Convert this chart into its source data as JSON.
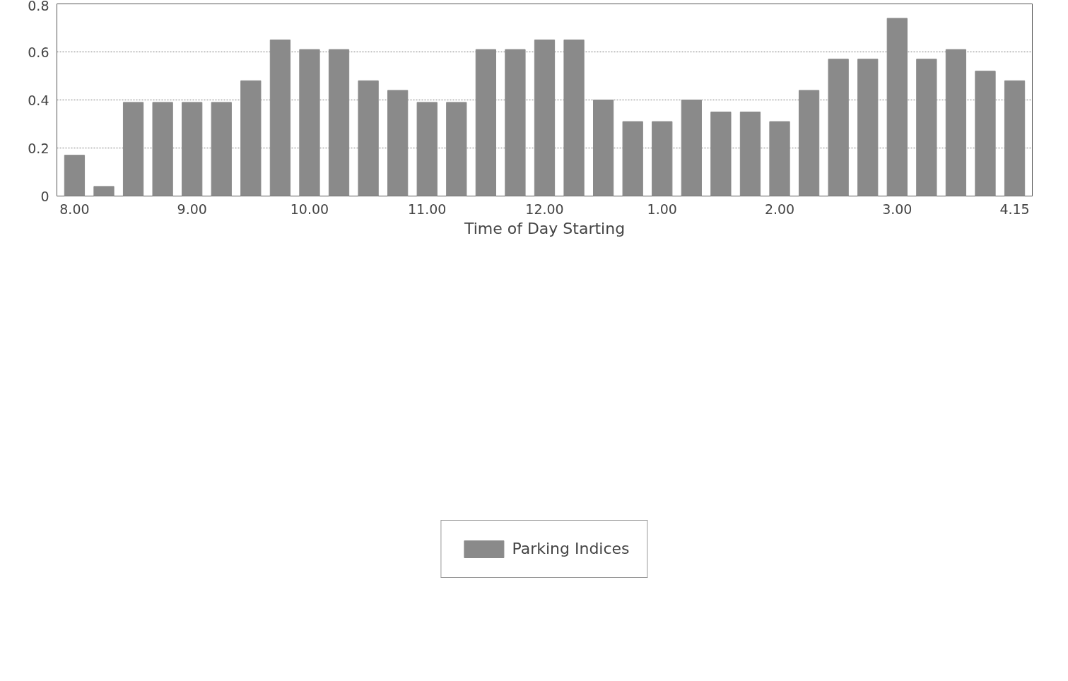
{
  "chart_data": {
    "type": "bar",
    "xlabel": "Time of Day Starting",
    "categories": [
      "8.00",
      null,
      null,
      null,
      "9.00",
      null,
      null,
      null,
      "10.00",
      null,
      null,
      null,
      "11.00",
      null,
      null,
      null,
      "12.00",
      null,
      null,
      null,
      "1.00",
      null,
      null,
      null,
      "2.00",
      null,
      null,
      null,
      "3.00",
      null,
      null,
      null,
      "4.15"
    ],
    "series": [
      {
        "name": "Parking Indices",
        "color": "#8a8a8a",
        "values": [
          0.17,
          0.04,
          0.39,
          0.39,
          0.39,
          0.39,
          0.48,
          0.65,
          0.61,
          0.61,
          0.48,
          0.44,
          0.39,
          0.39,
          0.61,
          0.61,
          0.65,
          0.65,
          0.4,
          0.31,
          0.31,
          0.4,
          0.35,
          0.35,
          0.31,
          0.44,
          0.57,
          0.57,
          0.74,
          0.57,
          0.61,
          0.52,
          0.48
        ]
      }
    ],
    "ylim": [
      0,
      0.8
    ],
    "yticks": [
      0,
      0.2,
      0.4,
      0.6,
      0.8
    ],
    "grid": "y",
    "legend": "bottom"
  }
}
